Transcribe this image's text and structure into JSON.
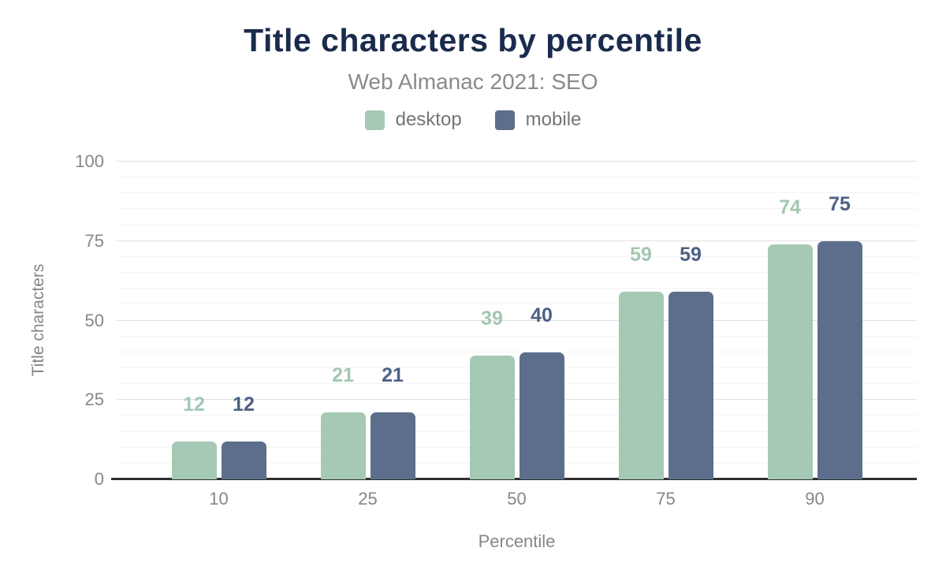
{
  "title": "Title characters by percentile",
  "subtitle": "Web Almanac 2021: SEO",
  "colors": {
    "title": "#1a2b4d",
    "muted": "#8a8a8a",
    "legend_text": "#757575",
    "tick": "#868686",
    "axis_line": "#2f2f2f",
    "grid_major": "#e0e0e0",
    "grid_minor": "#f4f4f4",
    "desktop": "#a5c9b4",
    "mobile": "#5c6e8c"
  },
  "chart_data": {
    "type": "bar",
    "title": "Title characters by percentile",
    "subtitle": "Web Almanac 2021: SEO",
    "categories": [
      "10",
      "25",
      "50",
      "75",
      "90"
    ],
    "series": [
      {
        "name": "desktop",
        "color": "#a5c9b4",
        "label_color": "#a3c8b2",
        "values": [
          12,
          21,
          39,
          59,
          74
        ]
      },
      {
        "name": "mobile",
        "color": "#5c6e8c",
        "label_color": "#4d6186",
        "values": [
          12,
          21,
          40,
          59,
          75
        ]
      }
    ],
    "xlabel": "Percentile",
    "ylabel": "Title characters",
    "ylim": [
      0,
      100
    ],
    "yticks": [
      0,
      25,
      50,
      75,
      100
    ],
    "minor_grid_step": 5,
    "grid": true,
    "legend_position": "top"
  }
}
